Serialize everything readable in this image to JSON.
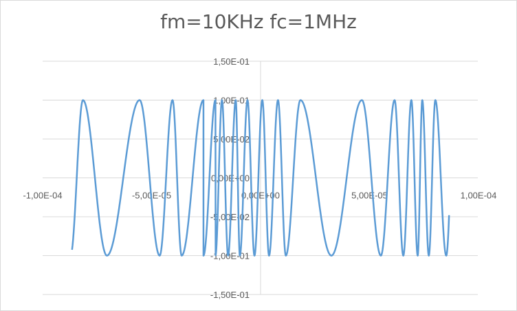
{
  "chart_data": {
    "type": "scatter",
    "title": "fm=10KHz fc=1MHz",
    "xlabel": "",
    "ylabel": "",
    "xlim": [
      -0.0001,
      0.0001
    ],
    "ylim": [
      -0.15,
      0.15
    ],
    "x_ticks": [
      {
        "value": -0.0001,
        "label": "-1,00E-04"
      },
      {
        "value": -5e-05,
        "label": "-5,00E-05"
      },
      {
        "value": 0,
        "label": "0,00E+00"
      },
      {
        "value": 5e-05,
        "label": "5,00E-05"
      },
      {
        "value": 0.0001,
        "label": "1,00E-04"
      }
    ],
    "y_ticks": [
      {
        "value": 0.15,
        "label": "1,50E-01"
      },
      {
        "value": 0.1,
        "label": "1,00E-01"
      },
      {
        "value": 0.05,
        "label": "5,00E-02"
      },
      {
        "value": 0,
        "label": "0,00E+00"
      },
      {
        "value": -0.05,
        "label": "-5,00E-02"
      },
      {
        "value": -0.1,
        "label": "-1,00E-01"
      },
      {
        "value": -0.15,
        "label": "-1,50E-01"
      }
    ],
    "grid": "horizontal",
    "legend": "none",
    "series": [
      {
        "color": "#5b9bd5",
        "amplitude": 0.1,
        "x_start": -8.65e-05,
        "x_end": 8.65e-05,
        "peak_x": [
          -8.15e-05,
          -5.55e-05,
          -4.04e-05,
          -2.62e-05,
          -1.77e-05,
          -1.14e-05,
          -6e-06,
          8e-07,
          8e-06,
          1.83e-05,
          4.65e-05,
          6.15e-05,
          6.92e-05,
          7.42e-05,
          8.02e-05
        ],
        "trough_x": [
          -7.05e-05,
          -4.63e-05,
          -3.62e-05,
          -2.62e-05,
          -2.07e-05,
          -1.49e-05,
          -9.5e-06,
          -2.8e-06,
          3.9e-06,
          1.16e-05,
          3.25e-05,
          5.52e-05,
          6.55e-05,
          7.21e-05,
          7.72e-05,
          8.52e-05
        ],
        "start_y": -0.0925,
        "end_y": -0.048
      }
    ]
  }
}
